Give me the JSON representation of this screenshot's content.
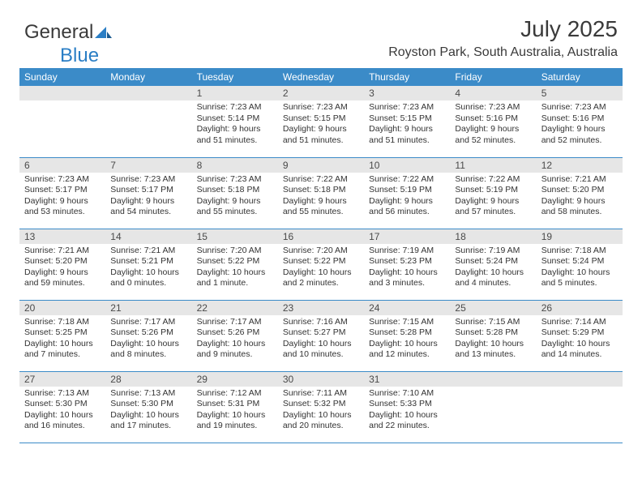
{
  "logo": {
    "text_general": "General",
    "text_blue": "Blue"
  },
  "header": {
    "month_title": "July 2025",
    "location": "Royston Park, South Australia, Australia"
  },
  "colors": {
    "header_bg": "#3b8bc8",
    "header_text": "#ffffff",
    "daynum_bg": "#e6e6e6",
    "daynum_text": "#4a4a4a",
    "body_text": "#333333",
    "border": "#3b8bc8",
    "logo_gray": "#3a3a3a",
    "logo_blue": "#2a7ec5"
  },
  "weekdays": [
    "Sunday",
    "Monday",
    "Tuesday",
    "Wednesday",
    "Thursday",
    "Friday",
    "Saturday"
  ],
  "grid": [
    [
      null,
      null,
      {
        "n": "1",
        "sr": "7:23 AM",
        "ss": "5:14 PM",
        "dl": "9 hours and 51 minutes."
      },
      {
        "n": "2",
        "sr": "7:23 AM",
        "ss": "5:15 PM",
        "dl": "9 hours and 51 minutes."
      },
      {
        "n": "3",
        "sr": "7:23 AM",
        "ss": "5:15 PM",
        "dl": "9 hours and 51 minutes."
      },
      {
        "n": "4",
        "sr": "7:23 AM",
        "ss": "5:16 PM",
        "dl": "9 hours and 52 minutes."
      },
      {
        "n": "5",
        "sr": "7:23 AM",
        "ss": "5:16 PM",
        "dl": "9 hours and 52 minutes."
      }
    ],
    [
      {
        "n": "6",
        "sr": "7:23 AM",
        "ss": "5:17 PM",
        "dl": "9 hours and 53 minutes."
      },
      {
        "n": "7",
        "sr": "7:23 AM",
        "ss": "5:17 PM",
        "dl": "9 hours and 54 minutes."
      },
      {
        "n": "8",
        "sr": "7:23 AM",
        "ss": "5:18 PM",
        "dl": "9 hours and 55 minutes."
      },
      {
        "n": "9",
        "sr": "7:22 AM",
        "ss": "5:18 PM",
        "dl": "9 hours and 55 minutes."
      },
      {
        "n": "10",
        "sr": "7:22 AM",
        "ss": "5:19 PM",
        "dl": "9 hours and 56 minutes."
      },
      {
        "n": "11",
        "sr": "7:22 AM",
        "ss": "5:19 PM",
        "dl": "9 hours and 57 minutes."
      },
      {
        "n": "12",
        "sr": "7:21 AM",
        "ss": "5:20 PM",
        "dl": "9 hours and 58 minutes."
      }
    ],
    [
      {
        "n": "13",
        "sr": "7:21 AM",
        "ss": "5:20 PM",
        "dl": "9 hours and 59 minutes."
      },
      {
        "n": "14",
        "sr": "7:21 AM",
        "ss": "5:21 PM",
        "dl": "10 hours and 0 minutes."
      },
      {
        "n": "15",
        "sr": "7:20 AM",
        "ss": "5:22 PM",
        "dl": "10 hours and 1 minute."
      },
      {
        "n": "16",
        "sr": "7:20 AM",
        "ss": "5:22 PM",
        "dl": "10 hours and 2 minutes."
      },
      {
        "n": "17",
        "sr": "7:19 AM",
        "ss": "5:23 PM",
        "dl": "10 hours and 3 minutes."
      },
      {
        "n": "18",
        "sr": "7:19 AM",
        "ss": "5:24 PM",
        "dl": "10 hours and 4 minutes."
      },
      {
        "n": "19",
        "sr": "7:18 AM",
        "ss": "5:24 PM",
        "dl": "10 hours and 5 minutes."
      }
    ],
    [
      {
        "n": "20",
        "sr": "7:18 AM",
        "ss": "5:25 PM",
        "dl": "10 hours and 7 minutes."
      },
      {
        "n": "21",
        "sr": "7:17 AM",
        "ss": "5:26 PM",
        "dl": "10 hours and 8 minutes."
      },
      {
        "n": "22",
        "sr": "7:17 AM",
        "ss": "5:26 PM",
        "dl": "10 hours and 9 minutes."
      },
      {
        "n": "23",
        "sr": "7:16 AM",
        "ss": "5:27 PM",
        "dl": "10 hours and 10 minutes."
      },
      {
        "n": "24",
        "sr": "7:15 AM",
        "ss": "5:28 PM",
        "dl": "10 hours and 12 minutes."
      },
      {
        "n": "25",
        "sr": "7:15 AM",
        "ss": "5:28 PM",
        "dl": "10 hours and 13 minutes."
      },
      {
        "n": "26",
        "sr": "7:14 AM",
        "ss": "5:29 PM",
        "dl": "10 hours and 14 minutes."
      }
    ],
    [
      {
        "n": "27",
        "sr": "7:13 AM",
        "ss": "5:30 PM",
        "dl": "10 hours and 16 minutes."
      },
      {
        "n": "28",
        "sr": "7:13 AM",
        "ss": "5:30 PM",
        "dl": "10 hours and 17 minutes."
      },
      {
        "n": "29",
        "sr": "7:12 AM",
        "ss": "5:31 PM",
        "dl": "10 hours and 19 minutes."
      },
      {
        "n": "30",
        "sr": "7:11 AM",
        "ss": "5:32 PM",
        "dl": "10 hours and 20 minutes."
      },
      {
        "n": "31",
        "sr": "7:10 AM",
        "ss": "5:33 PM",
        "dl": "10 hours and 22 minutes."
      },
      null,
      null
    ]
  ],
  "labels": {
    "sunrise": "Sunrise:",
    "sunset": "Sunset:",
    "daylight": "Daylight:"
  }
}
